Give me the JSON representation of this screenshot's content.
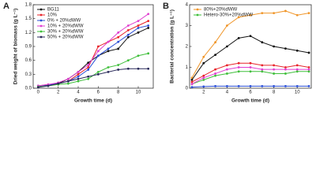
{
  "chart_data": [
    {
      "type": "line",
      "panel": "A",
      "x_label": "Growth time (d)",
      "y_label": "Dried weight of biomass (g L⁻¹)",
      "xlim": [
        -0.5,
        11.5
      ],
      "xticks": [
        0,
        2,
        4,
        6,
        8,
        10
      ],
      "ylim": [
        0,
        1.8
      ],
      "yticks": [
        {
          "value": 0,
          "label": "0.0"
        },
        0.3,
        0.6,
        0.9,
        1.2,
        1.5,
        1.8
      ],
      "legend": "upper left",
      "x": [
        0,
        1,
        2,
        3,
        4,
        5,
        6,
        7,
        8,
        9,
        10,
        11
      ],
      "series": [
        {
          "name": "BG11",
          "color": "#111111",
          "values": [
            0.05,
            0.06,
            0.1,
            0.2,
            0.35,
            0.55,
            0.7,
            0.8,
            0.85,
            1.1,
            1.2,
            1.3
          ]
        },
        {
          "name": "10%",
          "color": "#e8242a",
          "values": [
            0.05,
            0.08,
            0.1,
            0.15,
            0.3,
            0.45,
            0.9,
            1.0,
            1.1,
            1.25,
            1.35,
            1.45
          ]
        },
        {
          "name": "0% + 20%dWW",
          "color": "#2b4fd6",
          "values": [
            0.05,
            0.07,
            0.1,
            0.15,
            0.25,
            0.4,
            0.7,
            0.85,
            1.0,
            1.15,
            1.3,
            1.35
          ]
        },
        {
          "name": "10% + 20%dWW",
          "color": "#e03fd0",
          "values": [
            0.05,
            0.08,
            0.12,
            0.2,
            0.35,
            0.5,
            0.8,
            1.0,
            1.2,
            1.35,
            1.45,
            1.6
          ]
        },
        {
          "name": "30% + 20%dWW",
          "color": "#3fbf3a",
          "values": [
            0.03,
            0.05,
            0.08,
            0.1,
            0.15,
            0.2,
            0.35,
            0.45,
            0.5,
            0.6,
            0.7,
            0.75
          ]
        },
        {
          "name": "50% + 20%dWW",
          "color": "#2a2a5a",
          "values": [
            0.02,
            0.05,
            0.1,
            0.15,
            0.2,
            0.25,
            0.3,
            0.35,
            0.4,
            0.42,
            0.42,
            0.42
          ]
        }
      ]
    },
    {
      "type": "line",
      "panel": "B",
      "x_label": "Growth time (d)",
      "y_label": "Bacterial concentration (g L⁻¹)",
      "xlim": [
        0.8,
        11.2
      ],
      "xticks": [
        2,
        4,
        6,
        8,
        10
      ],
      "ylim": [
        0,
        4
      ],
      "yticks": [
        0,
        1,
        2,
        3,
        4
      ],
      "legend": "upper left",
      "x": [
        1,
        2,
        3,
        4,
        5,
        6,
        7,
        8,
        9,
        10,
        11
      ],
      "series": [
        {
          "name": "80%+20%dWW",
          "color": "#f0962a",
          "values": [
            0.5,
            1.5,
            2.2,
            3.0,
            3.4,
            3.5,
            3.6,
            3.6,
            3.7,
            3.5,
            3.6
          ]
        },
        {
          "name": "Hetero-30%+20%dWW",
          "color": "#3fbf3a",
          "values": [
            0.2,
            0.4,
            0.6,
            0.7,
            0.8,
            0.8,
            0.8,
            0.7,
            0.7,
            0.8,
            0.8
          ]
        },
        {
          "color": "#111111",
          "values": [
            0.4,
            1.2,
            1.6,
            2.0,
            2.4,
            2.5,
            2.2,
            2.0,
            1.9,
            1.8,
            1.7
          ]
        },
        {
          "color": "#e8242a",
          "values": [
            0.3,
            0.6,
            0.9,
            1.1,
            1.2,
            1.2,
            1.1,
            1.1,
            1.0,
            1.1,
            1.0
          ]
        },
        {
          "color": "#e03fd0",
          "values": [
            0.2,
            0.5,
            0.7,
            0.9,
            1.0,
            1.0,
            0.9,
            0.9,
            0.9,
            0.9,
            0.9
          ]
        },
        {
          "color": "#2b4fd6",
          "values": [
            0.05,
            0.08,
            0.1,
            0.1,
            0.1,
            0.1,
            0.1,
            0.1,
            0.1,
            0.1,
            0.1
          ]
        }
      ]
    }
  ]
}
